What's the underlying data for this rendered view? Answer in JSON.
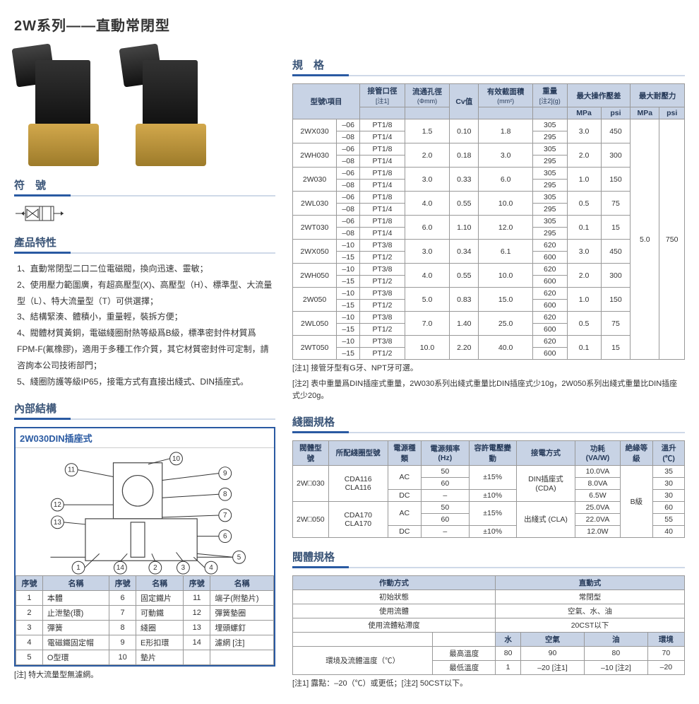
{
  "title": "2W系列——直動常閉型",
  "sections": {
    "symbol": "符　號",
    "features": "產品特性",
    "structure": "內部結構",
    "spec": "規　格",
    "coil": "綫圈規格",
    "body": "閥體規格"
  },
  "structure_title": "2W030DIN插座式",
  "features": [
    "1、直動常閉型二口二位電磁閥，換向迅速、靈敏；",
    "2、使用壓力範圍廣，有超高壓型(X)、高壓型（H）、標準型、大流量型（L）、特大流量型（T）可供選擇；",
    "3、結構緊湊、體積小，重量輕，裝拆方便；",
    "4、閥體材質黃銅，電磁綫圈耐熱等級爲B級，標凖密封件材質爲FPM-F(氟橡膠)，適用于多種工作介質，其它材質密封件可定制，請咨詢本公司技術部門；",
    "5、綫圈防護等級IP65，接電方式有直接出綫式、DIN插座式。"
  ],
  "parts_headers": [
    "序號",
    "名稱",
    "序號",
    "名稱",
    "序號",
    "名稱"
  ],
  "parts_rows": [
    [
      "1",
      "本體",
      "6",
      "固定鐵片",
      "11",
      "端子(附墊片)"
    ],
    [
      "2",
      "止泄墊(環)",
      "7",
      "可動鐵",
      "12",
      "彈簧墊圈"
    ],
    [
      "3",
      "彈簧",
      "8",
      "綫圈",
      "13",
      "埋頭螺釘"
    ],
    [
      "4",
      "電磁鐵固定帽",
      "9",
      "E形扣環",
      "14",
      "濾網 [注]"
    ],
    [
      "5",
      "O型環",
      "10",
      "墊片",
      "",
      ""
    ]
  ],
  "parts_note": "[注] 特大流量型無濾網。",
  "spec_header": {
    "model": "型號\\項目",
    "port": "接管口徑",
    "port_note": "[注1]",
    "orifice": "流通孔徑",
    "orifice_unit": "(Φmm)",
    "cv": "Cv值",
    "area": "有效截面積",
    "area_unit": "(mm²)",
    "weight": "重量",
    "weight_note": "[注2](g)",
    "maxop": "最大操作壓差",
    "mpa": "MPa",
    "psi": "psi",
    "maxwith": "最大耐壓力"
  },
  "spec_rows": [
    {
      "model": "2WX030",
      "subs": [
        [
          "–06",
          "PT1/8"
        ],
        [
          "–08",
          "PT1/4"
        ]
      ],
      "orifice": "1.5",
      "cv": "0.10",
      "area": "1.8",
      "wt": [
        "305",
        "295"
      ],
      "mpa": "3.0",
      "psi": "450"
    },
    {
      "model": "2WH030",
      "subs": [
        [
          "–06",
          "PT1/8"
        ],
        [
          "–08",
          "PT1/4"
        ]
      ],
      "orifice": "2.0",
      "cv": "0.18",
      "area": "3.0",
      "wt": [
        "305",
        "295"
      ],
      "mpa": "2.0",
      "psi": "300"
    },
    {
      "model": "2W030",
      "subs": [
        [
          "–06",
          "PT1/8"
        ],
        [
          "–08",
          "PT1/4"
        ]
      ],
      "orifice": "3.0",
      "cv": "0.33",
      "area": "6.0",
      "wt": [
        "305",
        "295"
      ],
      "mpa": "1.0",
      "psi": "150"
    },
    {
      "model": "2WL030",
      "subs": [
        [
          "–06",
          "PT1/8"
        ],
        [
          "–08",
          "PT1/4"
        ]
      ],
      "orifice": "4.0",
      "cv": "0.55",
      "area": "10.0",
      "wt": [
        "305",
        "295"
      ],
      "mpa": "0.5",
      "psi": "75"
    },
    {
      "model": "2WT030",
      "subs": [
        [
          "–06",
          "PT1/8"
        ],
        [
          "–08",
          "PT1/4"
        ]
      ],
      "orifice": "6.0",
      "cv": "1.10",
      "area": "12.0",
      "wt": [
        "305",
        "295"
      ],
      "mpa": "0.1",
      "psi": "15"
    },
    {
      "model": "2WX050",
      "subs": [
        [
          "–10",
          "PT3/8"
        ],
        [
          "–15",
          "PT1/2"
        ]
      ],
      "orifice": "3.0",
      "cv": "0.34",
      "area": "6.1",
      "wt": [
        "620",
        "600"
      ],
      "mpa": "3.0",
      "psi": "450"
    },
    {
      "model": "2WH050",
      "subs": [
        [
          "–10",
          "PT3/8"
        ],
        [
          "–15",
          "PT1/2"
        ]
      ],
      "orifice": "4.0",
      "cv": "0.55",
      "area": "10.0",
      "wt": [
        "620",
        "600"
      ],
      "mpa": "2.0",
      "psi": "300"
    },
    {
      "model": "2W050",
      "subs": [
        [
          "–10",
          "PT3/8"
        ],
        [
          "–15",
          "PT1/2"
        ]
      ],
      "orifice": "5.0",
      "cv": "0.83",
      "area": "15.0",
      "wt": [
        "620",
        "600"
      ],
      "mpa": "1.0",
      "psi": "150"
    },
    {
      "model": "2WL050",
      "subs": [
        [
          "–10",
          "PT3/8"
        ],
        [
          "–15",
          "PT1/2"
        ]
      ],
      "orifice": "7.0",
      "cv": "1.40",
      "area": "25.0",
      "wt": [
        "620",
        "600"
      ],
      "mpa": "0.5",
      "psi": "75"
    },
    {
      "model": "2WT050",
      "subs": [
        [
          "–10",
          "PT3/8"
        ],
        [
          "–15",
          "PT1/2"
        ]
      ],
      "orifice": "10.0",
      "cv": "2.20",
      "area": "40.0",
      "wt": [
        "620",
        "600"
      ],
      "mpa": "0.1",
      "psi": "15"
    }
  ],
  "spec_withstand": {
    "mpa": "5.0",
    "psi": "750"
  },
  "spec_notes": [
    "[注1] 接管牙型有G牙、NPT牙可選。",
    "[注2] 表中重量爲DIN插座式重量，2W030系列出綫式重量比DIN插座式少10g，2W050系列出綫式重量比DIN插座式少20g。"
  ],
  "coil_headers": [
    "閥體型號",
    "所配綫圈型號",
    "電源種類",
    "電源頻率 (Hz)",
    "容許電壓變動",
    "接電方式",
    "功耗 (VA/W)",
    "絶緣等級",
    "溫升(℃)"
  ],
  "coil_rows": [
    {
      "body": "2W□030",
      "coil": "CDA116 CLA116",
      "rows": [
        [
          "AC",
          "50",
          "±15%",
          "10.0VA",
          "35"
        ],
        [
          "",
          "60",
          "",
          "8.0VA",
          "30"
        ],
        [
          "DC",
          "–",
          "±10%",
          "6.5W",
          "30"
        ]
      ]
    },
    {
      "body": "2W□050",
      "coil": "CDA170 CLA170",
      "rows": [
        [
          "AC",
          "50",
          "±15%",
          "25.0VA",
          "60"
        ],
        [
          "",
          "60",
          "",
          "22.0VA",
          "55"
        ],
        [
          "DC",
          "–",
          "±10%",
          "12.0W",
          "40"
        ]
      ]
    }
  ],
  "coil_conn": [
    "DIN插座式 (CDA)",
    "出綫式 (CLA)"
  ],
  "coil_ins": "B級",
  "body_header": [
    "作動方式",
    "直動式"
  ],
  "body_rows": [
    [
      "初始狀態",
      "常閉型"
    ],
    [
      "使用流體",
      "空氣、水、油"
    ],
    [
      "使用流體粘滯度",
      "20CST以下"
    ]
  ],
  "env_header": [
    "",
    "",
    "水",
    "空氣",
    "油",
    "環境"
  ],
  "env_rows": [
    [
      "環境及流體溫度（℃）",
      "最高溫度",
      "80",
      "90",
      "80",
      "70"
    ],
    [
      "",
      "最低溫度",
      "1",
      "–20 [注1]",
      "–10 [注2]",
      "–20"
    ]
  ],
  "body_notes": "[注1] 露點：–20（℃）或更低；[注2] 50CST以下。"
}
